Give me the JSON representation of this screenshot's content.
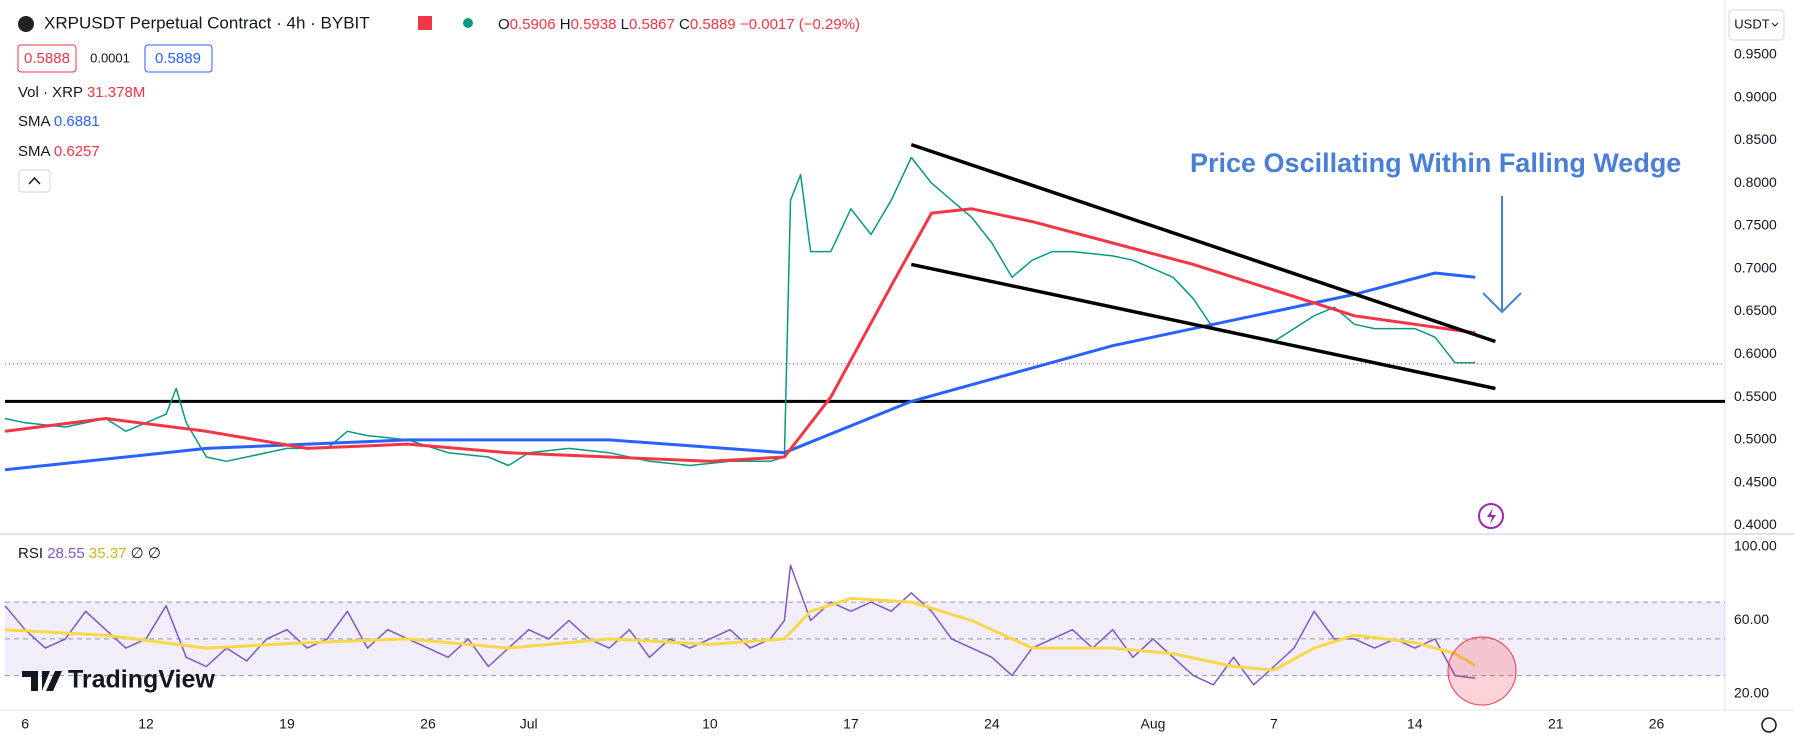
{
  "ui": {
    "symbol": "XRPUSDT Perpetual Contract · 4h · BYBIT",
    "ohlc": [
      {
        "label": "O",
        "value": "0.5906"
      },
      {
        "label": "H",
        "value": "0.5938"
      },
      {
        "label": "L",
        "value": "0.5867"
      },
      {
        "label": "C",
        "value": "0.5889"
      }
    ],
    "change": "−0.0017 (−0.29%)",
    "bid": "0.5888",
    "spread": "0.0001",
    "ask": "0.5889",
    "vol_label": "Vol · XRP",
    "vol_value": "31.378M",
    "sma_values": [
      "0.6881",
      "0.6257"
    ],
    "rsi_label": "RSI",
    "rsi_values": [
      "28.55",
      "35.37",
      "∅",
      "∅"
    ],
    "currency": "USDT",
    "logo": "TradingView"
  },
  "chart_data": [
    {
      "type": "line",
      "annotation": "Price Oscillating Within Falling Wedge",
      "xlim": [
        5,
        90.4
      ],
      "xticks": [
        6,
        12,
        19,
        26,
        {
          "value": 31,
          "label": "Jul"
        },
        {
          "value": 40,
          "label": "10"
        },
        {
          "value": 47,
          "label": "17"
        },
        {
          "value": 54,
          "label": "24"
        },
        {
          "value": 62,
          "label": "Aug"
        },
        {
          "value": 68,
          "label": "7"
        },
        {
          "value": 75,
          "label": "14"
        },
        {
          "value": 82,
          "label": "21"
        },
        {
          "value": 87,
          "label": "26"
        }
      ],
      "ylim": [
        0.39,
        1.014
      ],
      "yticks": [
        {
          "value": 0.95,
          "label": "0.9500"
        },
        {
          "value": 0.9,
          "label": "0.9000"
        },
        {
          "value": 0.85,
          "label": "0.8500"
        },
        {
          "value": 0.8,
          "label": "0.8000"
        },
        {
          "value": 0.75,
          "label": "0.7500"
        },
        {
          "value": 0.7,
          "label": "0.7000"
        },
        {
          "value": 0.65,
          "label": "0.6500"
        },
        {
          "value": 0.6,
          "label": "0.6000"
        },
        {
          "value": 0.55,
          "label": "0.5500"
        },
        {
          "value": 0.5,
          "label": "0.5000"
        },
        {
          "value": 0.45,
          "label": "0.4500"
        },
        {
          "value": 0.4,
          "label": "0.4000"
        }
      ],
      "last_price": 0.5889,
      "hline": {
        "value": 0.545,
        "color": "#000000"
      },
      "series": [
        {
          "color": "#089981",
          "x": [
            5,
            6,
            8,
            10,
            11,
            13,
            13.5,
            14,
            15,
            16,
            17,
            19,
            21,
            22,
            23,
            25,
            27,
            29,
            30,
            31,
            33,
            35,
            37,
            39,
            41,
            43,
            43.7,
            44,
            44.5,
            45,
            46,
            47,
            48,
            49,
            50,
            51,
            52,
            53,
            54,
            55,
            56,
            57,
            58,
            60,
            61,
            62,
            63,
            64,
            65,
            66,
            67,
            68,
            69,
            70,
            71,
            72,
            73,
            74,
            75,
            76,
            77,
            78
          ],
          "values": [
            0.525,
            0.52,
            0.515,
            0.525,
            0.51,
            0.53,
            0.56,
            0.52,
            0.48,
            0.475,
            0.48,
            0.49,
            0.49,
            0.51,
            0.505,
            0.5,
            0.485,
            0.48,
            0.47,
            0.485,
            0.49,
            0.485,
            0.475,
            0.47,
            0.475,
            0.475,
            0.48,
            0.78,
            0.81,
            0.72,
            0.72,
            0.77,
            0.74,
            0.78,
            0.83,
            0.8,
            0.78,
            0.76,
            0.73,
            0.69,
            0.71,
            0.72,
            0.72,
            0.715,
            0.71,
            0.7,
            0.69,
            0.665,
            0.63,
            0.625,
            0.62,
            0.615,
            0.63,
            0.645,
            0.655,
            0.635,
            0.63,
            0.63,
            0.63,
            0.62,
            0.59,
            0.59
          ]
        },
        {
          "name": "SMA",
          "color": "#2962ff",
          "x": [
            5,
            15,
            25,
            35,
            43.7,
            50,
            60,
            68,
            72,
            76,
            78
          ],
          "values": [
            0.465,
            0.49,
            0.5,
            0.5,
            0.485,
            0.545,
            0.61,
            0.65,
            0.67,
            0.695,
            0.69
          ]
        },
        {
          "name": "SMA",
          "color": "#f23645",
          "x": [
            5,
            10,
            15,
            20,
            25,
            30,
            35,
            40,
            43.7,
            46,
            49,
            51,
            53,
            56,
            60,
            64,
            68,
            72,
            75,
            78
          ],
          "values": [
            0.51,
            0.525,
            0.51,
            0.49,
            0.495,
            0.485,
            0.48,
            0.475,
            0.48,
            0.55,
            0.68,
            0.765,
            0.77,
            0.755,
            0.73,
            0.705,
            0.675,
            0.645,
            0.635,
            0.625
          ]
        }
      ],
      "drawings": [
        {
          "color": "#000000",
          "x": [
            50,
            79
          ],
          "values": [
            0.845,
            0.615
          ]
        },
        {
          "color": "#000000",
          "x": [
            50,
            79
          ],
          "values": [
            0.705,
            0.56
          ]
        }
      ]
    },
    {
      "type": "line",
      "xlim": [
        5,
        90.4
      ],
      "ylim": [
        12.4,
        106.5
      ],
      "yticks": [
        {
          "value": 100,
          "label": "100.00"
        },
        {
          "value": 60,
          "label": "60.00"
        },
        {
          "value": 20,
          "label": "20.00"
        }
      ],
      "band": [
        30,
        70
      ],
      "levels": [
        70,
        50,
        30
      ],
      "series": [
        {
          "color": "#7e57c2",
          "x": [
            5,
            6,
            7,
            8,
            9,
            10,
            11,
            12,
            13,
            14,
            15,
            16,
            17,
            18,
            19,
            20,
            21,
            22,
            23,
            24,
            25,
            26,
            27,
            28,
            29,
            30,
            31,
            32,
            33,
            34,
            35,
            36,
            37,
            38,
            39,
            40,
            41,
            42,
            43,
            43.7,
            44,
            44.5,
            45,
            46,
            47,
            48,
            49,
            50,
            51,
            52,
            53,
            54,
            55,
            56,
            57,
            58,
            59,
            60,
            61,
            62,
            63,
            64,
            65,
            66,
            67,
            68,
            69,
            70,
            71,
            72,
            73,
            74,
            75,
            76,
            77,
            78
          ],
          "values": [
            68,
            55,
            45,
            50,
            65,
            55,
            45,
            50,
            68,
            40,
            35,
            45,
            38,
            50,
            55,
            45,
            50,
            65,
            45,
            55,
            50,
            45,
            40,
            50,
            35,
            45,
            55,
            50,
            60,
            50,
            45,
            55,
            40,
            50,
            45,
            50,
            55,
            45,
            50,
            60,
            90,
            75,
            60,
            70,
            65,
            70,
            65,
            75,
            65,
            50,
            45,
            40,
            30,
            45,
            50,
            55,
            45,
            55,
            40,
            50,
            40,
            30,
            25,
            40,
            25,
            35,
            45,
            65,
            50,
            50,
            45,
            50,
            45,
            50,
            30,
            28.55
          ]
        },
        {
          "color": "#f7d84a",
          "x": [
            5,
            10,
            15,
            20,
            25,
            30,
            35,
            40,
            43.7,
            45,
            47,
            50,
            53,
            56,
            60,
            63,
            66,
            68,
            70,
            72,
            75,
            77,
            78
          ],
          "values": [
            55,
            52,
            45,
            48,
            50,
            45,
            50,
            47,
            50,
            65,
            72,
            70,
            60,
            45,
            45,
            42,
            35,
            33,
            45,
            52,
            48,
            42,
            35.37
          ]
        }
      ]
    }
  ]
}
